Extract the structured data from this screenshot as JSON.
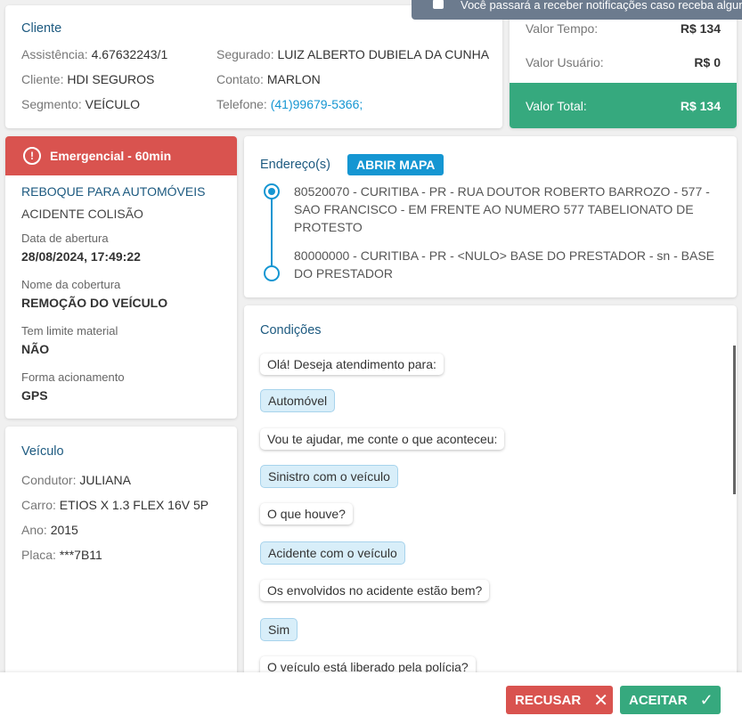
{
  "notification": "Você passará a receber notificações caso receba algum",
  "cliente": {
    "title": "Cliente",
    "rows": [
      {
        "label": "Assistência:",
        "value": "4.67632243/1"
      },
      {
        "label": "Cliente:",
        "value": "HDI SEGUROS"
      },
      {
        "label": "Segmento:",
        "value": "VEÍCULO"
      },
      {
        "label": "Segurado:",
        "value": "LUIZ ALBERTO DUBIELA DA CUNHA"
      },
      {
        "label": "Contato:",
        "value": "MARLON"
      },
      {
        "label": "Telefone:",
        "value": "(41)99679-5366;"
      }
    ]
  },
  "valores": {
    "tempo_label": "Valor Tempo:",
    "tempo": "R$ 134",
    "usuario_label": "Valor Usuário:",
    "usuario": "R$ 0",
    "total_label": "Valor Total:",
    "total": "R$ 134"
  },
  "servico": {
    "badge": "Emergencial - 60min",
    "tipo": "REBOQUE PARA AUTOMÓVEIS",
    "subtipo": "ACIDENTE COLISÃO",
    "fields": [
      {
        "label": "Data de abertura",
        "value": "28/08/2024, 17:49:22"
      },
      {
        "label": "Nome da cobertura",
        "value": "REMOÇÃO DO VEÍCULO"
      },
      {
        "label": "Tem limite material",
        "value": "NÃO"
      },
      {
        "label": "Forma acionamento",
        "value": "GPS"
      }
    ]
  },
  "veiculo": {
    "title": "Veículo",
    "rows": [
      {
        "label": "Condutor:",
        "value": "JULIANA"
      },
      {
        "label": "Carro:",
        "value": "ETIOS X 1.3 FLEX 16V 5P"
      },
      {
        "label": "Ano:",
        "value": "2015"
      },
      {
        "label": "Placa:",
        "value": "***7B11"
      }
    ]
  },
  "enderecos": {
    "title": "Endereço(s)",
    "button": "ABRIR MAPA",
    "items": [
      "80520070 - CURITIBA - PR - RUA DOUTOR ROBERTO BARROZO - 577 - SAO FRANCISCO - EM FRENTE AO NUMERO 577 TABELIONATO DE PROTESTO",
      "80000000 - CURITIBA - PR - <NULO> BASE DO PRESTADOR - sn - BASE DO PRESTADOR"
    ]
  },
  "condicoes": {
    "title": "Condições",
    "messages": [
      {
        "text": "Olá! Deseja atendimento para:",
        "user": false
      },
      {
        "text": "Automóvel",
        "user": true
      },
      {
        "text": "Vou te ajudar, me conte o que aconteceu:",
        "user": false
      },
      {
        "text": "Sinistro com o veículo",
        "user": true
      },
      {
        "text": "O que houve?",
        "user": false
      },
      {
        "text": "Acidente com o veículo",
        "user": true
      },
      {
        "text": "Os envolvidos no acidente estão bem?",
        "user": false
      },
      {
        "text": "Sim",
        "user": true
      },
      {
        "text": "O veículo está liberado pela polícia?",
        "user": false
      }
    ]
  },
  "actions": {
    "recusar": "RECUSAR",
    "aceitar": "ACEITAR"
  },
  "colors": {
    "danger": "#d9534f",
    "success": "#36a97e",
    "primary": "#1596d2"
  }
}
